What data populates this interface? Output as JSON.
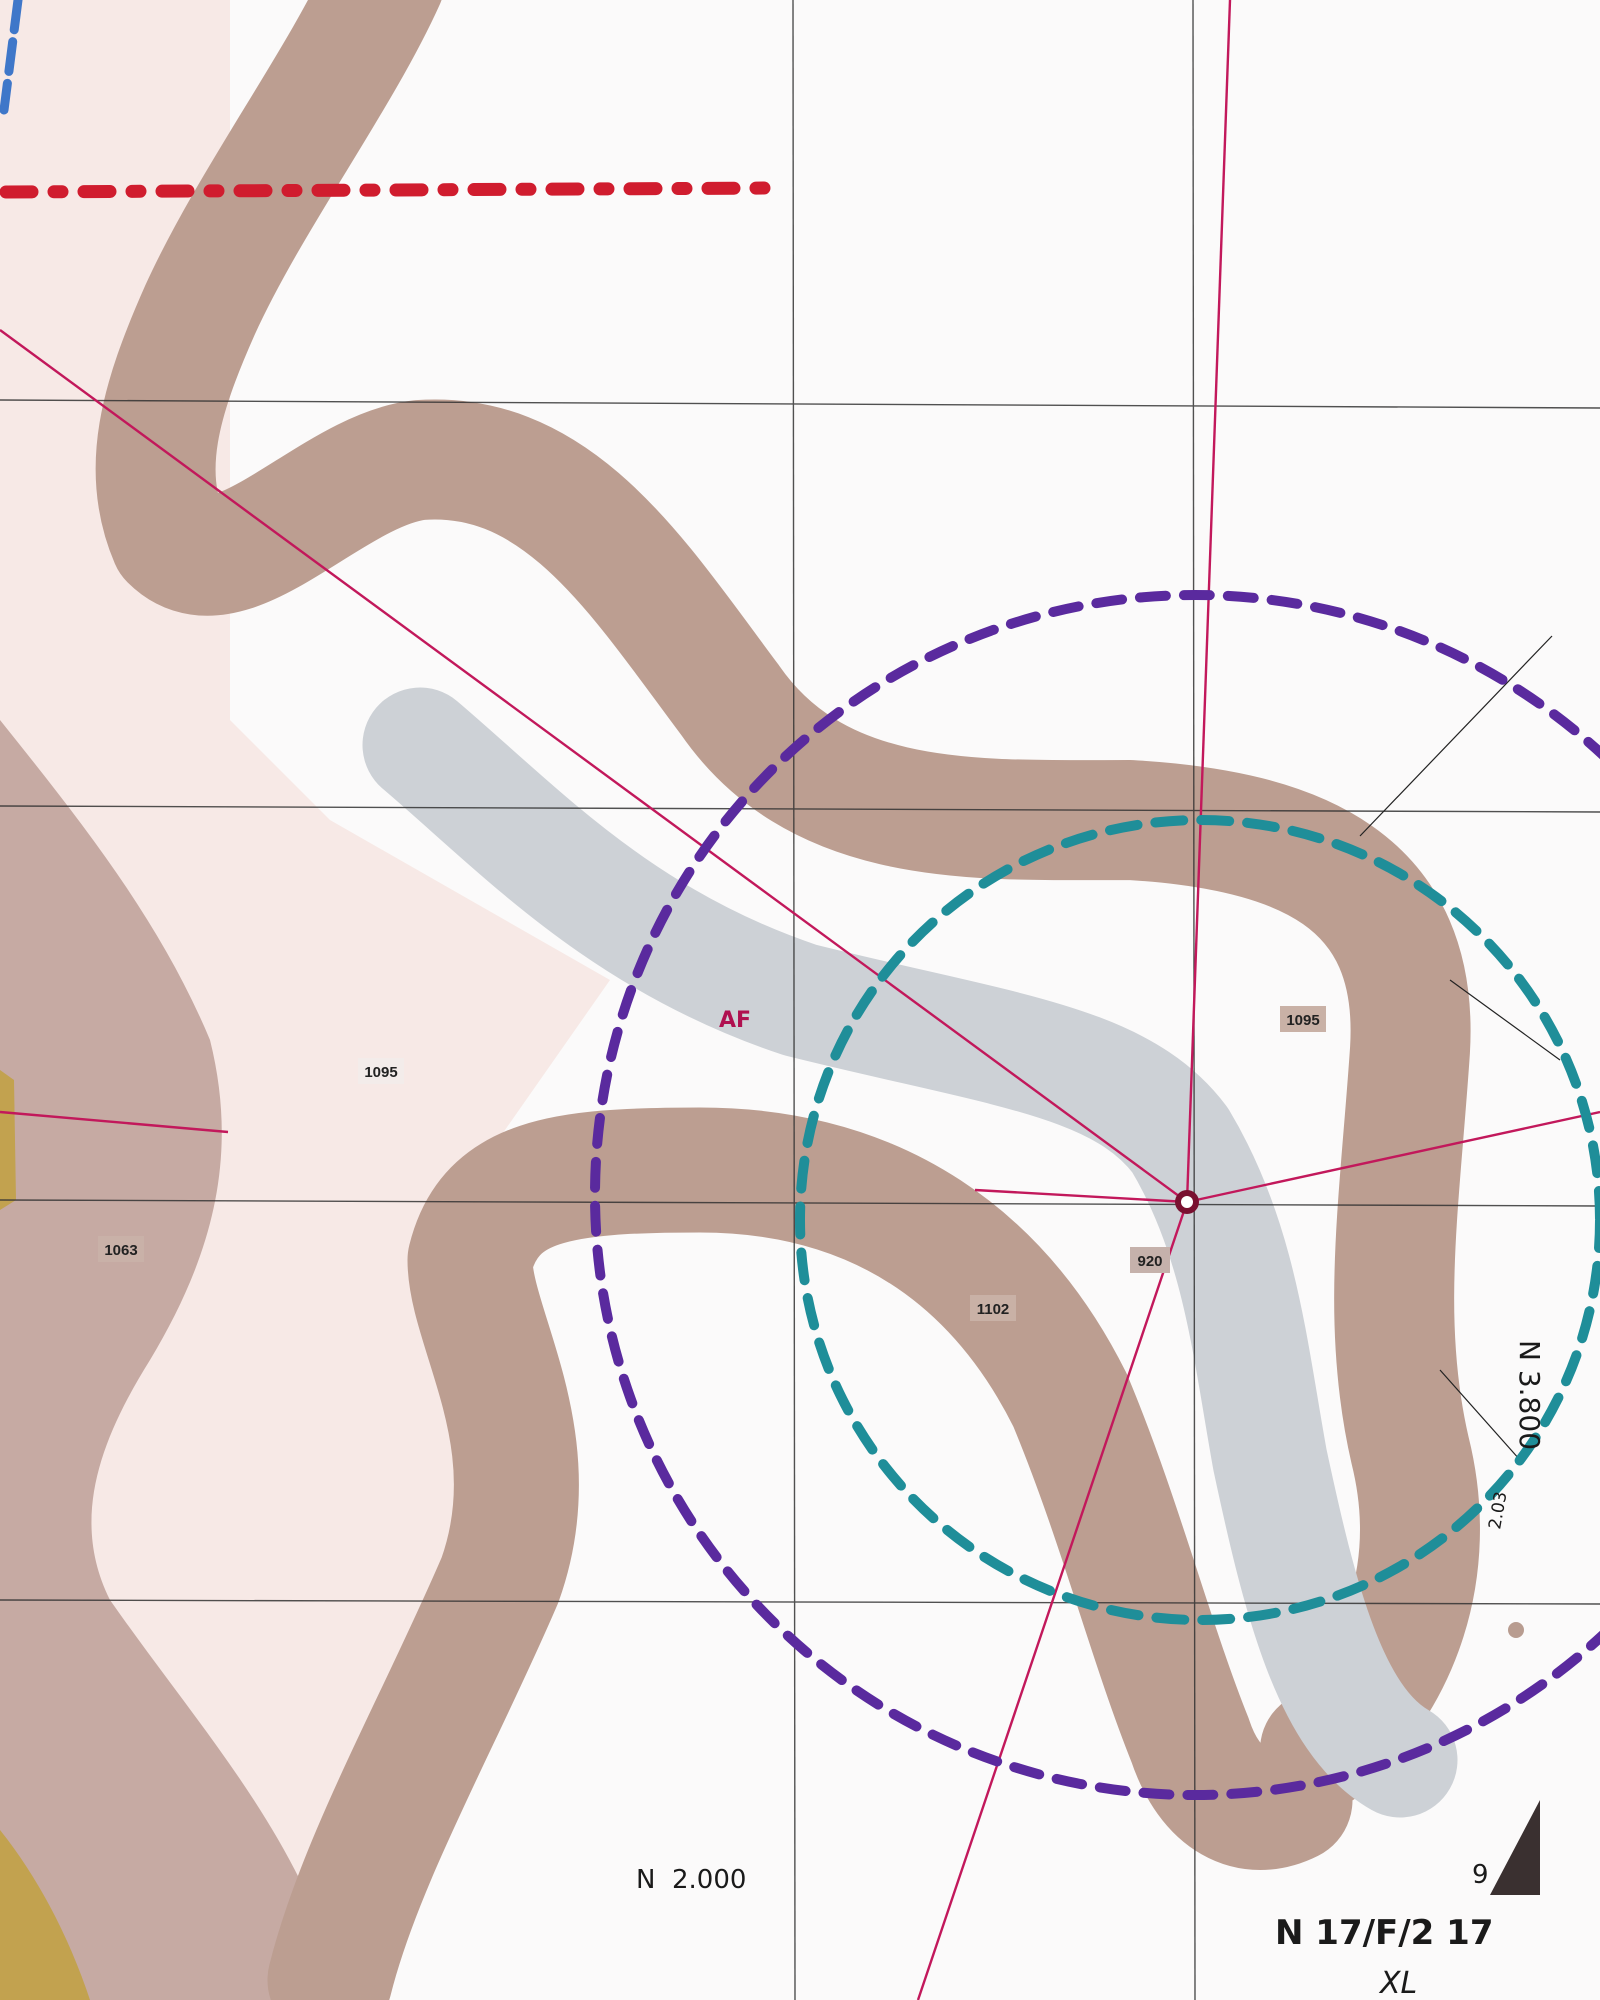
{
  "map": {
    "colors": {
      "paper": "#fbfafa",
      "lowland": "#f7e9e6",
      "band": "#bc9e91",
      "left_zone": "#c6aaa3",
      "channel": "#cdd1d6",
      "gold": "#c2a24f",
      "magenta": "#c2185b",
      "red_dash": "#d01c2e",
      "purple_circle": "#5a2a9e",
      "teal_circle": "#1f8e99",
      "blue_mark": "#3f77c9",
      "grid": "#333333"
    },
    "labels": {
      "area_left": "1095",
      "area_right": "1095",
      "area_far_left": "1063",
      "area_lower": "1102",
      "area_center": "920",
      "zone_code": "AF"
    },
    "annotations": {
      "northing_bottom": "N  2.000",
      "northing_right": "N 3.800",
      "right_small": "2.03",
      "corner_digit": "9",
      "date_mark": "N 17/F/2 17",
      "initials": "XL"
    }
  }
}
